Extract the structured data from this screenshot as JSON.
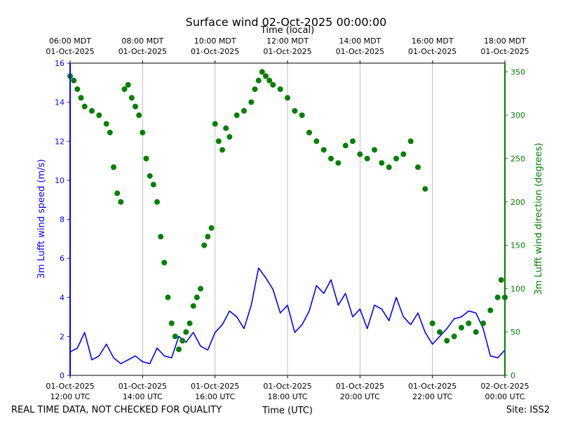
{
  "chart_data": {
    "type": "line",
    "title": "Surface wind 02-Oct-2025 00:00:00",
    "top_axis_label": "Time (local)",
    "xlabel": "Time (UTC)",
    "ylabel_left": "3m Lufft wind speed (m/s)",
    "ylabel_right": "3m Lufft wind direction (degrees)",
    "footer_left": "REAL TIME DATA, NOT CHECKED FOR QUALITY",
    "footer_right": "Site: ISS2",
    "xlim_hours_utc": [
      12,
      24
    ],
    "ylim_left": [
      0,
      16
    ],
    "ylim_right": [
      0,
      360
    ],
    "left_ticks": [
      0,
      2,
      4,
      6,
      8,
      10,
      12,
      14,
      16
    ],
    "right_ticks": [
      0,
      50,
      100,
      150,
      200,
      250,
      300,
      350
    ],
    "bottom_ticks": [
      {
        "h": 12,
        "l1": "01-Oct-2025",
        "l2": "12:00 UTC"
      },
      {
        "h": 14,
        "l1": "01-Oct-2025",
        "l2": "14:00 UTC"
      },
      {
        "h": 16,
        "l1": "01-Oct-2025",
        "l2": "16:00 UTC"
      },
      {
        "h": 18,
        "l1": "01-Oct-2025",
        "l2": "18:00 UTC"
      },
      {
        "h": 20,
        "l1": "01-Oct-2025",
        "l2": "20:00 UTC"
      },
      {
        "h": 22,
        "l1": "01-Oct-2025",
        "l2": "22:00 UTC"
      },
      {
        "h": 24,
        "l1": "02-Oct-2025",
        "l2": "00:00 UTC"
      }
    ],
    "top_ticks": [
      {
        "h": 12,
        "l1": "06:00 MDT",
        "l2": "01-Oct-2025"
      },
      {
        "h": 14,
        "l1": "08:00 MDT",
        "l2": "01-Oct-2025"
      },
      {
        "h": 16,
        "l1": "10:00 MDT",
        "l2": "01-Oct-2025"
      },
      {
        "h": 18,
        "l1": "12:00 MDT",
        "l2": "01-Oct-2025"
      },
      {
        "h": 20,
        "l1": "14:00 MDT",
        "l2": "01-Oct-2025"
      },
      {
        "h": 22,
        "l1": "16:00 MDT",
        "l2": "01-Oct-2025"
      },
      {
        "h": 24,
        "l1": "18:00 MDT",
        "l2": "01-Oct-2025"
      }
    ],
    "speed_color": "#0000ff",
    "direction_color": "#008000",
    "series": [
      {
        "name": "3m Lufft wind speed",
        "axis": "left",
        "style": "line",
        "x_hours": [
          12.0,
          12.2,
          12.4,
          12.6,
          12.8,
          13.0,
          13.2,
          13.4,
          13.6,
          13.8,
          14.0,
          14.2,
          14.4,
          14.6,
          14.8,
          15.0,
          15.2,
          15.4,
          15.6,
          15.8,
          16.0,
          16.2,
          16.4,
          16.6,
          16.8,
          17.0,
          17.2,
          17.4,
          17.6,
          17.8,
          18.0,
          18.2,
          18.4,
          18.6,
          18.8,
          19.0,
          19.2,
          19.4,
          19.6,
          19.8,
          20.0,
          20.2,
          20.4,
          20.6,
          20.8,
          21.0,
          21.2,
          21.4,
          21.6,
          21.8,
          22.0,
          22.2,
          22.4,
          22.6,
          22.8,
          23.0,
          23.2,
          23.4,
          23.6,
          23.8,
          24.0
        ],
        "values": [
          1.2,
          1.4,
          2.2,
          0.8,
          1.0,
          1.6,
          0.9,
          0.6,
          0.8,
          1.0,
          0.7,
          0.6,
          1.4,
          1.0,
          0.9,
          2.0,
          1.7,
          2.2,
          1.5,
          1.3,
          2.2,
          2.6,
          3.3,
          3.0,
          2.4,
          3.6,
          5.5,
          5.0,
          4.4,
          3.2,
          3.6,
          2.2,
          2.6,
          3.3,
          4.6,
          4.2,
          4.9,
          3.6,
          4.2,
          3.0,
          3.4,
          2.4,
          3.6,
          3.4,
          2.8,
          4.0,
          3.0,
          2.6,
          3.2,
          2.2,
          1.6,
          2.0,
          2.4,
          2.9,
          3.0,
          3.3,
          3.2,
          2.4,
          1.0,
          0.9,
          1.3
        ]
      },
      {
        "name": "3m Lufft wind direction",
        "axis": "right",
        "style": "markers",
        "x_hours": [
          12.0,
          12.1,
          12.2,
          12.3,
          12.4,
          12.6,
          12.8,
          13.0,
          13.1,
          13.2,
          13.3,
          13.4,
          13.5,
          13.6,
          13.7,
          13.8,
          13.9,
          14.0,
          14.1,
          14.2,
          14.3,
          14.4,
          14.5,
          14.6,
          14.7,
          14.8,
          14.9,
          15.0,
          15.1,
          15.2,
          15.3,
          15.4,
          15.5,
          15.6,
          15.7,
          15.8,
          15.9,
          16.0,
          16.1,
          16.2,
          16.3,
          16.4,
          16.6,
          16.8,
          17.0,
          17.1,
          17.2,
          17.3,
          17.4,
          17.5,
          17.6,
          17.8,
          18.0,
          18.2,
          18.4,
          18.6,
          18.8,
          19.0,
          19.2,
          19.4,
          19.6,
          19.8,
          20.0,
          20.2,
          20.4,
          20.6,
          20.8,
          21.0,
          21.2,
          21.4,
          21.6,
          21.8,
          22.0,
          22.2,
          22.4,
          22.6,
          22.8,
          23.0,
          23.2,
          23.4,
          23.6,
          23.8,
          23.9,
          24.0
        ],
        "values": [
          345,
          340,
          330,
          320,
          310,
          305,
          300,
          290,
          280,
          240,
          210,
          200,
          330,
          335,
          320,
          310,
          300,
          280,
          250,
          230,
          220,
          200,
          160,
          130,
          90,
          60,
          45,
          30,
          40,
          50,
          60,
          80,
          90,
          100,
          150,
          160,
          170,
          290,
          270,
          260,
          285,
          275,
          300,
          305,
          315,
          330,
          340,
          350,
          345,
          340,
          335,
          330,
          320,
          305,
          300,
          280,
          270,
          260,
          250,
          245,
          265,
          270,
          255,
          250,
          260,
          245,
          240,
          250,
          255,
          270,
          240,
          215,
          60,
          50,
          40,
          45,
          55,
          60,
          50,
          60,
          75,
          90,
          110,
          90
        ]
      }
    ]
  }
}
